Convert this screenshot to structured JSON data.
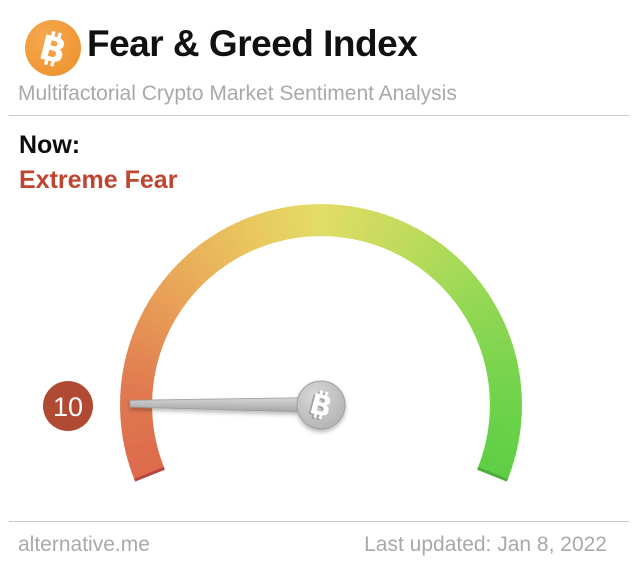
{
  "header": {
    "logo_icon": "bitcoin-icon",
    "title": "Fear & Greed Index",
    "subtitle": "Multifactorial Crypto Market Sentiment Analysis"
  },
  "status": {
    "label": "Now:",
    "classification": "Extreme Fear"
  },
  "chart_data": {
    "type": "gauge",
    "title": "Fear & Greed Index",
    "value": 10,
    "value_label": "10",
    "min": 0,
    "max": 100,
    "classification": "Extreme Fear",
    "start_angle_deg": 202,
    "end_angle_deg": -22,
    "arc_colors": [
      [
        0.0,
        "#dd6a4c"
      ],
      [
        0.12,
        "#e07a50"
      ],
      [
        0.27,
        "#e9a558"
      ],
      [
        0.4,
        "#e9c75e"
      ],
      [
        0.5,
        "#e2dc66"
      ],
      [
        0.62,
        "#c0db5c"
      ],
      [
        0.75,
        "#94d854"
      ],
      [
        0.9,
        "#6ed24b"
      ],
      [
        1.0,
        "#5ecf45"
      ]
    ],
    "end_cap_left_color": "#b5493f",
    "end_cap_right_color": "#4fae3c",
    "badge_color": "#b04a32",
    "needle_color_light": "#d9d9d9",
    "needle_color_dark": "#a4a4a4",
    "hub_icon": "bitcoin-coin-icon",
    "legend": "none",
    "tick_labels": "none"
  },
  "footer": {
    "site": "alternative.me",
    "last_updated": "Last updated: Jan 8, 2022"
  },
  "colors": {
    "title_text": "#111111",
    "muted_text": "#a9a9a9",
    "divider": "#c9c9c9",
    "classification_text": "#bf4530",
    "bitcoin_orange": "#ef9330",
    "coin_gray": "#bdbdbd"
  }
}
